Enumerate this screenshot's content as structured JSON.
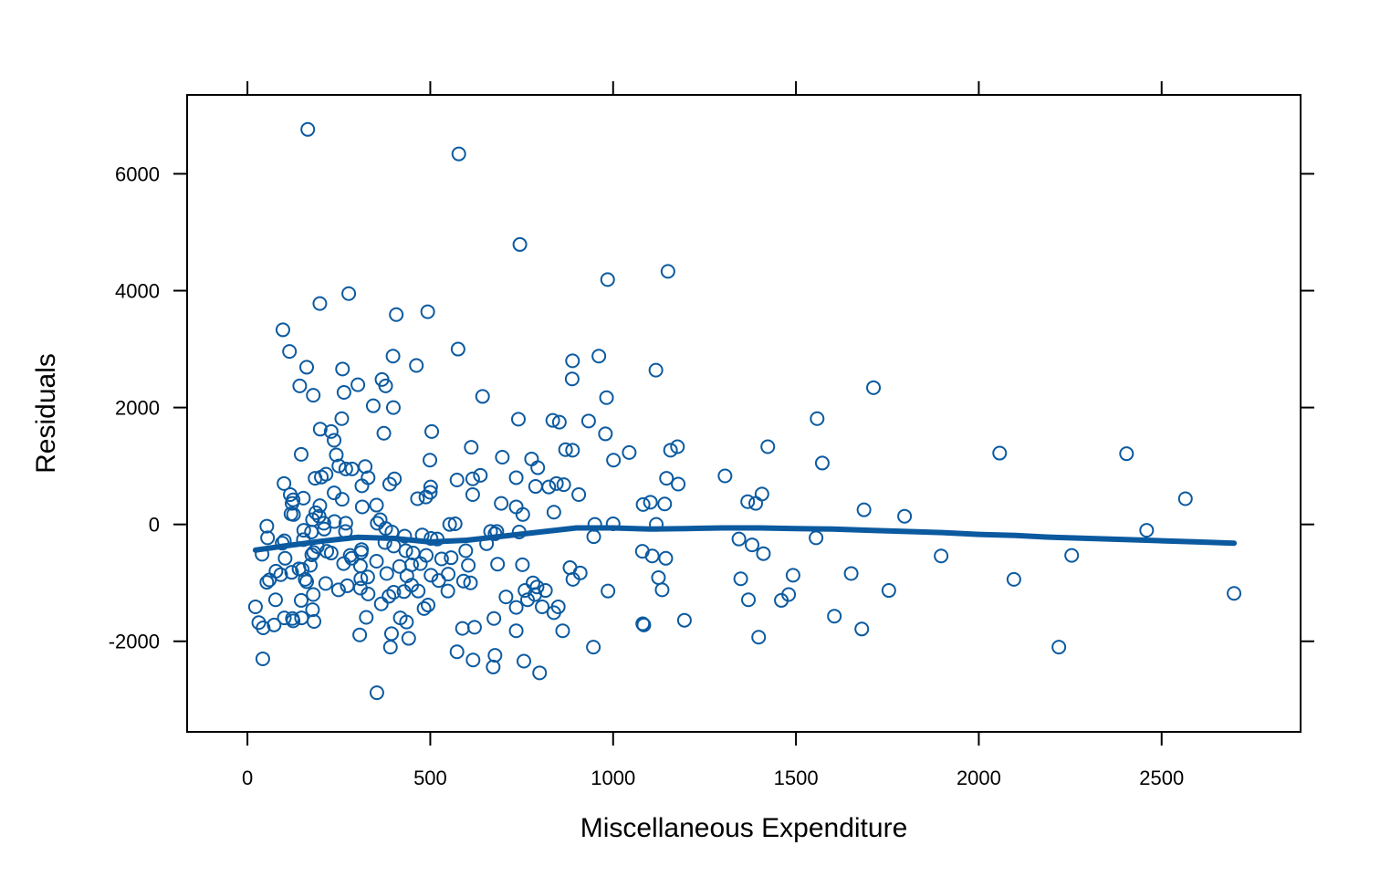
{
  "chart_data": {
    "type": "scatter",
    "xlabel": "Miscellaneous Expenditure",
    "ylabel": "Residuals",
    "xlim": [
      -165,
      2880
    ],
    "ylim": [
      -3550,
      7350
    ],
    "x_ticks": [
      0,
      500,
      1000,
      1500,
      2000,
      2500
    ],
    "y_ticks": [
      -2000,
      0,
      2000,
      4000,
      6000
    ],
    "x_tick_labels": [
      "0",
      "500",
      "1000",
      "1500",
      "2000",
      "2500"
    ],
    "y_tick_labels": [
      "-2000",
      "0",
      "2000",
      "4000",
      "6000"
    ],
    "grid": false,
    "colors": {
      "points": "#0b5aa0",
      "smooth": "#0b5aa0",
      "frame": "#000000"
    },
    "series": [
      {
        "kind": "points",
        "points": [
          [
            165,
            6760
          ],
          [
            578,
            6340
          ],
          [
            745,
            4790
          ],
          [
            1150,
            4330
          ],
          [
            985,
            4190
          ],
          [
            277,
            3950
          ],
          [
            198,
            3780
          ],
          [
            407,
            3590
          ],
          [
            493,
            3640
          ],
          [
            97,
            3330
          ],
          [
            115,
            2960
          ],
          [
            576,
            3000
          ],
          [
            398,
            2880
          ],
          [
            889,
            2800
          ],
          [
            961,
            2880
          ],
          [
            462,
            2720
          ],
          [
            162,
            2690
          ],
          [
            260,
            2660
          ],
          [
            1117,
            2640
          ],
          [
            368,
            2480
          ],
          [
            888,
            2490
          ],
          [
            143,
            2370
          ],
          [
            302,
            2390
          ],
          [
            378,
            2370
          ],
          [
            1712,
            2340
          ],
          [
            264,
            2260
          ],
          [
            180,
            2210
          ],
          [
            643,
            2190
          ],
          [
            982,
            2170
          ],
          [
            344,
            2030
          ],
          [
            399,
            2000
          ],
          [
            741,
            1800
          ],
          [
            835,
            1780
          ],
          [
            853,
            1750
          ],
          [
            1558,
            1810
          ],
          [
            258,
            1810
          ],
          [
            933,
            1770
          ],
          [
            199,
            1630
          ],
          [
            229,
            1590
          ],
          [
            373,
            1560
          ],
          [
            504,
            1590
          ],
          [
            979,
            1550
          ],
          [
            237,
            1440
          ],
          [
            1176,
            1330
          ],
          [
            1423,
            1330
          ],
          [
            612,
            1320
          ],
          [
            870,
            1280
          ],
          [
            889,
            1270
          ],
          [
            1157,
            1270
          ],
          [
            1044,
            1230
          ],
          [
            2057,
            1220
          ],
          [
            2404,
            1210
          ],
          [
            147,
            1200
          ],
          [
            243,
            1190
          ],
          [
            499,
            1100
          ],
          [
            697,
            1150
          ],
          [
            777,
            1120
          ],
          [
            1001,
            1100
          ],
          [
            1572,
            1050
          ],
          [
            322,
            990
          ],
          [
            269,
            950
          ],
          [
            250,
            1000
          ],
          [
            286,
            950
          ],
          [
            794,
            970
          ],
          [
            185,
            790
          ],
          [
            202,
            810
          ],
          [
            215,
            860
          ],
          [
            330,
            800
          ],
          [
            402,
            780
          ],
          [
            573,
            760
          ],
          [
            616,
            780
          ],
          [
            637,
            840
          ],
          [
            735,
            800
          ],
          [
            1146,
            790
          ],
          [
            1306,
            830
          ],
          [
            100,
            700
          ],
          [
            313,
            660
          ],
          [
            389,
            690
          ],
          [
            788,
            650
          ],
          [
            824,
            640
          ],
          [
            845,
            700
          ],
          [
            865,
            680
          ],
          [
            1178,
            690
          ],
          [
            117,
            510
          ],
          [
            125,
            420
          ],
          [
            153,
            450
          ],
          [
            237,
            540
          ],
          [
            259,
            430
          ],
          [
            465,
            440
          ],
          [
            488,
            470
          ],
          [
            500,
            550
          ],
          [
            501,
            640
          ],
          [
            616,
            510
          ],
          [
            906,
            510
          ],
          [
            1407,
            520
          ],
          [
            122,
            360
          ],
          [
            198,
            320
          ],
          [
            187,
            200
          ],
          [
            119,
            180
          ],
          [
            126,
            170
          ],
          [
            196,
            140
          ],
          [
            178,
            80
          ],
          [
            209,
            20
          ],
          [
            238,
            50
          ],
          [
            269,
            20
          ],
          [
            314,
            300
          ],
          [
            353,
            330
          ],
          [
            355,
            20
          ],
          [
            363,
            80
          ],
          [
            694,
            360
          ],
          [
            735,
            300
          ],
          [
            753,
            170
          ],
          [
            838,
            210
          ],
          [
            1082,
            340
          ],
          [
            1102,
            380
          ],
          [
            1141,
            350
          ],
          [
            1368,
            390
          ],
          [
            1390,
            360
          ],
          [
            1686,
            250
          ],
          [
            1797,
            140
          ],
          [
            2565,
            440
          ],
          [
            53,
            -30
          ],
          [
            154,
            -100
          ],
          [
            175,
            -130
          ],
          [
            210,
            -80
          ],
          [
            268,
            -120
          ],
          [
            378,
            -70
          ],
          [
            395,
            -130
          ],
          [
            430,
            -200
          ],
          [
            478,
            -180
          ],
          [
            502,
            -240
          ],
          [
            519,
            -250
          ],
          [
            553,
            0
          ],
          [
            568,
            10
          ],
          [
            665,
            -120
          ],
          [
            682,
            -120
          ],
          [
            743,
            -130
          ],
          [
            950,
            0
          ],
          [
            1000,
            10
          ],
          [
            1118,
            0
          ],
          [
            2459,
            -100
          ],
          [
            55,
            -230
          ],
          [
            95,
            -320
          ],
          [
            101,
            -280
          ],
          [
            153,
            -260
          ],
          [
            191,
            -380
          ],
          [
            217,
            -460
          ],
          [
            229,
            -490
          ],
          [
            281,
            -530
          ],
          [
            311,
            -480
          ],
          [
            312,
            -430
          ],
          [
            376,
            -310
          ],
          [
            400,
            -370
          ],
          [
            433,
            -450
          ],
          [
            453,
            -490
          ],
          [
            489,
            -530
          ],
          [
            531,
            -590
          ],
          [
            557,
            -570
          ],
          [
            597,
            -450
          ],
          [
            654,
            -330
          ],
          [
            677,
            -160
          ],
          [
            947,
            -210
          ],
          [
            1344,
            -250
          ],
          [
            1380,
            -350
          ],
          [
            1555,
            -230
          ],
          [
            1897,
            -540
          ],
          [
            2254,
            -530
          ],
          [
            40,
            -510
          ],
          [
            53,
            -990
          ],
          [
            60,
            -950
          ],
          [
            78,
            -800
          ],
          [
            91,
            -860
          ],
          [
            103,
            -580
          ],
          [
            121,
            -820
          ],
          [
            141,
            -760
          ],
          [
            150,
            -770
          ],
          [
            158,
            -940
          ],
          [
            162,
            -980
          ],
          [
            172,
            -700
          ],
          [
            176,
            -520
          ],
          [
            181,
            -480
          ],
          [
            263,
            -670
          ],
          [
            285,
            -580
          ],
          [
            309,
            -710
          ],
          [
            310,
            -930
          ],
          [
            329,
            -900
          ],
          [
            353,
            -630
          ],
          [
            381,
            -840
          ],
          [
            416,
            -720
          ],
          [
            436,
            -880
          ],
          [
            449,
            -690
          ],
          [
            473,
            -670
          ],
          [
            502,
            -870
          ],
          [
            523,
            -960
          ],
          [
            549,
            -850
          ],
          [
            591,
            -970
          ],
          [
            604,
            -700
          ],
          [
            684,
            -680
          ],
          [
            752,
            -690
          ],
          [
            781,
            -1000
          ],
          [
            815,
            -1130
          ],
          [
            882,
            -740
          ],
          [
            890,
            -940
          ],
          [
            910,
            -830
          ],
          [
            1080,
            -460
          ],
          [
            1107,
            -540
          ],
          [
            1124,
            -910
          ],
          [
            1144,
            -580
          ],
          [
            1349,
            -930
          ],
          [
            1411,
            -500
          ],
          [
            1492,
            -870
          ],
          [
            1651,
            -840
          ],
          [
            2096,
            -940
          ],
          [
            2698,
            -1180
          ],
          [
            22,
            -1410
          ],
          [
            77,
            -1290
          ],
          [
            101,
            -1600
          ],
          [
            123,
            -1610
          ],
          [
            147,
            -1300
          ],
          [
            178,
            -1460
          ],
          [
            180,
            -1200
          ],
          [
            214,
            -1010
          ],
          [
            249,
            -1120
          ],
          [
            273,
            -1050
          ],
          [
            309,
            -1090
          ],
          [
            330,
            -1190
          ],
          [
            387,
            -1230
          ],
          [
            400,
            -1160
          ],
          [
            428,
            -1150
          ],
          [
            449,
            -1040
          ],
          [
            467,
            -1140
          ],
          [
            483,
            -1440
          ],
          [
            494,
            -1380
          ],
          [
            548,
            -1140
          ],
          [
            610,
            -1000
          ],
          [
            707,
            -1240
          ],
          [
            735,
            -1420
          ],
          [
            759,
            -1130
          ],
          [
            786,
            -1200
          ],
          [
            792,
            -1070
          ],
          [
            838,
            -1510
          ],
          [
            850,
            -1410
          ],
          [
            986,
            -1140
          ],
          [
            1134,
            -1120
          ],
          [
            1195,
            -1640
          ],
          [
            1370,
            -1290
          ],
          [
            1460,
            -1300
          ],
          [
            1480,
            -1200
          ],
          [
            1605,
            -1570
          ],
          [
            1680,
            -1790
          ],
          [
            1754,
            -1130
          ],
          [
            31,
            -1680
          ],
          [
            43,
            -1770
          ],
          [
            73,
            -1720
          ],
          [
            125,
            -1650
          ],
          [
            148,
            -1600
          ],
          [
            182,
            -1660
          ],
          [
            307,
            -1890
          ],
          [
            325,
            -1590
          ],
          [
            366,
            -1360
          ],
          [
            394,
            -1870
          ],
          [
            418,
            -1600
          ],
          [
            435,
            -1670
          ],
          [
            588,
            -1780
          ],
          [
            621,
            -1760
          ],
          [
            674,
            -1610
          ],
          [
            735,
            -1820
          ],
          [
            766,
            -1290
          ],
          [
            806,
            -1410
          ],
          [
            862,
            -1820
          ],
          [
            1081,
            -1700
          ],
          [
            1084,
            -1720
          ],
          [
            1398,
            -1930
          ],
          [
            42,
            -2300
          ],
          [
            354,
            -2880
          ],
          [
            391,
            -2100
          ],
          [
            441,
            -1950
          ],
          [
            573,
            -2180
          ],
          [
            617,
            -2320
          ],
          [
            672,
            -2440
          ],
          [
            677,
            -2240
          ],
          [
            756,
            -2340
          ],
          [
            799,
            -2540
          ],
          [
            946,
            -2100
          ],
          [
            2219,
            -2100
          ]
        ]
      },
      {
        "kind": "smooth",
        "points": [
          [
            22,
            -440
          ],
          [
            100,
            -370
          ],
          [
            200,
            -290
          ],
          [
            300,
            -220
          ],
          [
            400,
            -240
          ],
          [
            500,
            -300
          ],
          [
            600,
            -270
          ],
          [
            700,
            -200
          ],
          [
            800,
            -130
          ],
          [
            900,
            -60
          ],
          [
            1000,
            -60
          ],
          [
            1100,
            -80
          ],
          [
            1200,
            -70
          ],
          [
            1300,
            -60
          ],
          [
            1400,
            -60
          ],
          [
            1500,
            -70
          ],
          [
            1600,
            -80
          ],
          [
            1700,
            -100
          ],
          [
            1800,
            -120
          ],
          [
            1900,
            -140
          ],
          [
            2000,
            -170
          ],
          [
            2100,
            -190
          ],
          [
            2200,
            -220
          ],
          [
            2300,
            -240
          ],
          [
            2400,
            -260
          ],
          [
            2500,
            -280
          ],
          [
            2600,
            -300
          ],
          [
            2698,
            -320
          ]
        ]
      }
    ]
  }
}
